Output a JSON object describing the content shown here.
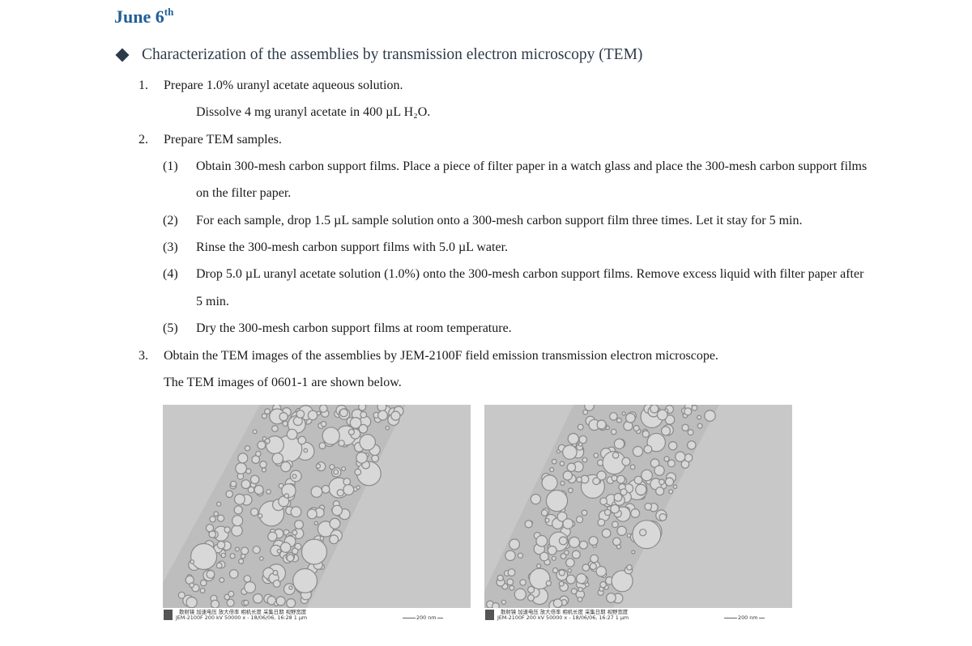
{
  "date": {
    "day": "June 6",
    "suffix": "th"
  },
  "section": {
    "title": "Characterization of the assemblies by transmission electron microscopy (TEM)"
  },
  "steps": {
    "s1": {
      "num": "1.",
      "text": "Prepare 1.0% uranyl acetate aqueous solution."
    },
    "s1_detail": "Dissolve 4 mg uranyl acetate in 400 µL H₂O.",
    "s2": {
      "num": "2.",
      "text": "Prepare TEM samples."
    },
    "sub1": {
      "num": "(1)",
      "line1": "Obtain 300-mesh carbon support films. Place a piece of filter paper in a watch glass and place the 300-mesh carbon support films",
      "line2": "on the filter paper."
    },
    "sub2": {
      "num": "(2)",
      "text": "For each sample, drop 1.5 µL sample solution onto a 300-mesh carbon support film three times. Let it stay for 5 min."
    },
    "sub3": {
      "num": "(3)",
      "text": "Rinse the 300-mesh carbon support films with 5.0 µL water."
    },
    "sub4": {
      "num": "(4)",
      "line1": "Drop 5.0 µL uranyl acetate solution (1.0%) onto the 300-mesh carbon support films. Remove excess liquid with filter paper after",
      "line2": "5 min."
    },
    "sub5": {
      "num": "(5)",
      "text": "Dry the 300-mesh carbon support films at room temperature."
    },
    "s3": {
      "num": "3.",
      "text": "Obtain the TEM images of the assemblies by JEM-2100F field emission transmission electron microscope."
    },
    "s3_detail": "The TEM images of 0601-1 are shown below."
  },
  "images": {
    "left": {
      "row1": "散射镜  加速电压 放大倍率 相机长度    采集日期     视野宽度",
      "row2": "JEM-2100F  200 kV  50000 x    -    18/06/06, 16:28  1 µm",
      "scale": "200 nm"
    },
    "right": {
      "row1": "散射镜  加速电压 放大倍率 相机长度    采集日期     视野宽度",
      "row2": "JEM-2100F  200 kV  50000 x    -    18/06/06, 16:27  1 µm",
      "scale": "200 nm"
    }
  },
  "colors": {
    "date": "#1f5f99",
    "section_title": "#2e3a4a",
    "bullet": "#2b3a4a"
  }
}
